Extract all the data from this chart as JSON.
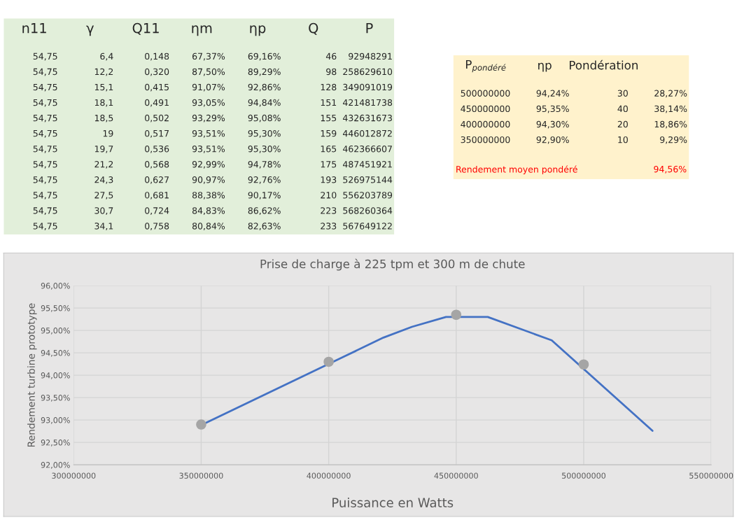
{
  "chart_data": [
    {
      "type": "other",
      "categories": [
        "n11",
        "γ",
        "Q11",
        "ηm",
        "ηp",
        "Q",
        "P"
      ],
      "cell_labels": [
        [
          "54,75",
          "6,4",
          "0,148",
          "67,37%",
          "69,16%",
          "46",
          "92948291"
        ],
        [
          "54,75",
          "12,2",
          "0,320",
          "87,50%",
          "89,29%",
          "98",
          "258629610"
        ],
        [
          "54,75",
          "15,1",
          "0,415",
          "91,07%",
          "92,86%",
          "128",
          "349091019"
        ],
        [
          "54,75",
          "18,1",
          "0,491",
          "93,05%",
          "94,84%",
          "151",
          "421481738"
        ],
        [
          "54,75",
          "18,5",
          "0,502",
          "93,29%",
          "95,08%",
          "155",
          "432631673"
        ],
        [
          "54,75",
          "19",
          "0,517",
          "93,51%",
          "95,30%",
          "159",
          "446012872"
        ],
        [
          "54,75",
          "19,7",
          "0,536",
          "93,51%",
          "95,30%",
          "165",
          "462366607"
        ],
        [
          "54,75",
          "21,2",
          "0,568",
          "92,99%",
          "94,78%",
          "175",
          "487451921"
        ],
        [
          "54,75",
          "24,3",
          "0,627",
          "90,97%",
          "92,76%",
          "193",
          "526975144"
        ],
        [
          "54,75",
          "27,5",
          "0,681",
          "88,38%",
          "90,17%",
          "210",
          "556203789"
        ],
        [
          "54,75",
          "30,7",
          "0,724",
          "84,83%",
          "86,62%",
          "223",
          "568260364"
        ],
        [
          "54,75",
          "34,1",
          "0,758",
          "80,84%",
          "82,63%",
          "233",
          "567649122"
        ]
      ]
    },
    {
      "type": "other",
      "categories": [
        "P$_{pondéré}$",
        "ηp",
        "Pondération",
        null
      ],
      "cell_labels": [
        [
          "500000000",
          "94,24%",
          "30",
          "28,27%"
        ],
        [
          "450000000",
          "95,35%",
          "40",
          "38,14%"
        ],
        [
          "400000000",
          "94,30%",
          "20",
          "18,86%"
        ],
        [
          "350000000",
          "92,90%",
          "10",
          "9,29%"
        ]
      ],
      "annotations": [
        "Rendement moyen pondéré",
        "94,56%"
      ]
    },
    {
      "type": "line",
      "title": "Prise de charge à 225 tpm et 300 m de chute",
      "xlabel": "Puissance en Watts",
      "ylabel": "Rendement turbine prototype",
      "series": [
        {
          "type": "line",
          "color": "#4472c4",
          "marker": "none",
          "x": [
            349091019,
            421481738,
            432631673,
            446012872,
            462366607,
            487451921,
            526975144
          ],
          "values": [
            92.86,
            94.84,
            95.08,
            95.3,
            95.3,
            94.78,
            92.76
          ]
        },
        {
          "type": "scatter",
          "color": "#a5a5a5",
          "marker": "circle",
          "x": [
            500000000,
            450000000,
            400000000,
            350000000
          ],
          "values": [
            94.24,
            95.35,
            94.3,
            92.9
          ]
        }
      ],
      "xlim": [
        300000000,
        550000000
      ],
      "xticks": [
        300000000,
        350000000,
        400000000,
        450000000,
        500000000,
        550000000
      ],
      "ylim": [
        92,
        96
      ],
      "yticks": [
        {
          "value": 92,
          "label": "92,00%"
        },
        {
          "value": 92.5,
          "label": "92,50%"
        },
        {
          "value": 93,
          "label": "93,00%"
        },
        {
          "value": 93.5,
          "label": "93,50%"
        },
        {
          "value": 94,
          "label": "94,00%"
        },
        {
          "value": 94.5,
          "label": "94,50%"
        },
        {
          "value": 95,
          "label": "95,00%"
        },
        {
          "value": 95.5,
          "label": "95,50%"
        },
        {
          "value": 96,
          "label": "96,00%"
        }
      ],
      "grid": true,
      "legend": false
    }
  ]
}
